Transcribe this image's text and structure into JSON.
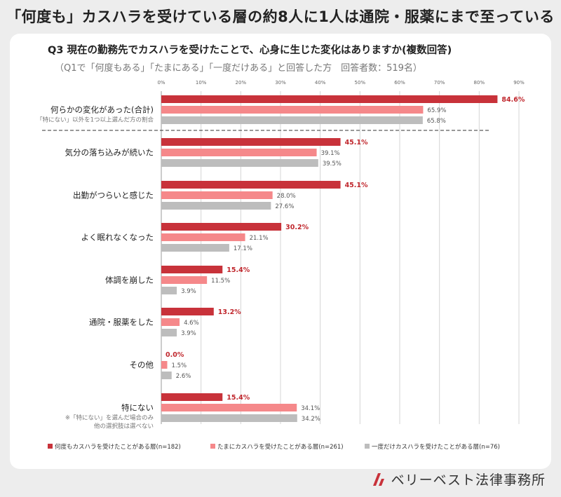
{
  "headline": "「何度も」カスハラを受けている層の約8人に1人は通院・服薬にまで至っている",
  "question": "Q3 現在の勤務先でカスハラを受けたことで、心身に生じた変化はありますか(複数回答)",
  "subtitle": "（Q1で「何度もある」「たまにある」「一度だけある」と回答した方　回答者数：519名）",
  "brand": "ベリーベスト法律事務所",
  "colors": {
    "series1": "#c8323a",
    "series2": "#f5888a",
    "series3": "#bdbdbd",
    "highlight_label": "#c0272d"
  },
  "chart_data": {
    "type": "bar",
    "orientation": "horizontal",
    "xlim": [
      0,
      90
    ],
    "xticks": [
      "0%",
      "10%",
      "20%",
      "30%",
      "40%",
      "50%",
      "60%",
      "70%",
      "80%",
      "90%"
    ],
    "grid": true,
    "legend_position": "bottom",
    "categories": [
      {
        "label": "何らかの変化があった(合計)",
        "note": [
          "「特にない」以外を1つ以上選んだ方の割合"
        ]
      },
      {
        "label": "気分の落ち込みが続いた",
        "note": []
      },
      {
        "label": "出勤がつらいと感じた",
        "note": []
      },
      {
        "label": "よく眠れなくなった",
        "note": []
      },
      {
        "label": "体調を崩した",
        "note": []
      },
      {
        "label": "通院・服薬をした",
        "note": []
      },
      {
        "label": "その他",
        "note": []
      },
      {
        "label": "特にない",
        "note": [
          "※「特にない」を選んだ場合のみ",
          "他の選択肢は選べない"
        ]
      }
    ],
    "series": [
      {
        "name": "何度もカスハラを受けたことがある層(n=182)",
        "values": [
          84.6,
          45.1,
          45.1,
          30.2,
          15.4,
          13.2,
          0.0,
          15.4
        ],
        "labels": [
          "84.6%",
          "45.1%",
          "45.1%",
          "30.2%",
          "15.4%",
          "13.2%",
          "0.0%",
          "15.4%"
        ]
      },
      {
        "name": "たまにカスハラを受けたことがある層(n=261)",
        "values": [
          65.9,
          39.1,
          28.0,
          21.1,
          11.5,
          4.6,
          1.5,
          34.1
        ],
        "labels": [
          "65.9%",
          "39.1%",
          "28.0%",
          "21.1%",
          "11.5%",
          "4.6%",
          "1.5%",
          "34.1%"
        ]
      },
      {
        "name": "一度だけカスハラを受けたことがある層(n=76)",
        "values": [
          65.8,
          39.5,
          27.6,
          17.1,
          3.9,
          3.9,
          2.6,
          34.2
        ],
        "labels": [
          "65.8%",
          "39.5%",
          "27.6%",
          "17.1%",
          "3.9%",
          "3.9%",
          "2.6%",
          "34.2%"
        ]
      }
    ]
  }
}
